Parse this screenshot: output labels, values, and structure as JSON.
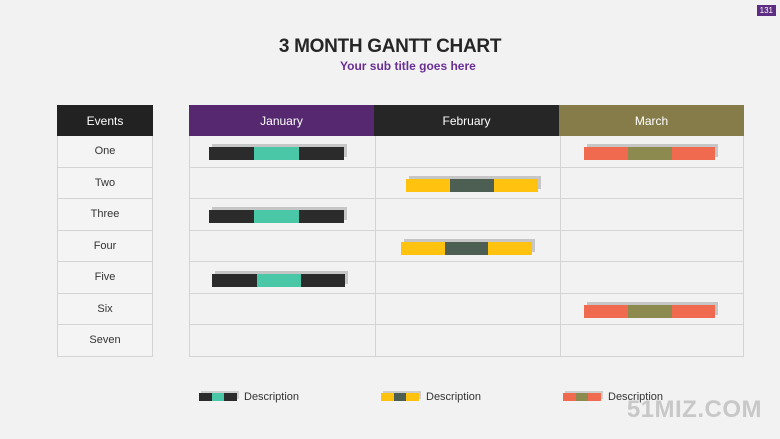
{
  "page_number": "131",
  "title": "3 MONTH GANTT CHART",
  "subtitle": "Your sub title goes here",
  "events_header": "Events",
  "watermark": "51MIZ.COM",
  "colors": {
    "dark": "#2b2b2b",
    "teal": "#4ac7a6",
    "yellow": "#ffc20e",
    "olive_dark": "#4d5e52",
    "coral": "#f06a4f",
    "olive": "#8c8a4e",
    "month_january": "#55286f",
    "month_february": "#262626",
    "month_march": "#857c4a"
  },
  "chart_data": {
    "type": "gantt",
    "title": "3 MONTH GANTT CHART",
    "subtitle": "Your sub title goes here",
    "months": [
      "January",
      "February",
      "March"
    ],
    "events": [
      "One",
      "Two",
      "Three",
      "Four",
      "Five",
      "Six",
      "Seven"
    ],
    "tasks": [
      {
        "event": "One",
        "month": "January",
        "start": 0.1,
        "end": 0.83,
        "style": "dark"
      },
      {
        "event": "Two",
        "month": "February",
        "start": 0.17,
        "end": 0.88,
        "style": "yellow"
      },
      {
        "event": "Three",
        "month": "January",
        "start": 0.1,
        "end": 0.83,
        "style": "dark"
      },
      {
        "event": "Four",
        "month": "February",
        "start": 0.14,
        "end": 0.85,
        "style": "yellow"
      },
      {
        "event": "Five",
        "month": "January",
        "start": 0.12,
        "end": 0.84,
        "style": "dark"
      },
      {
        "event": "Six",
        "month": "March",
        "start": 0.13,
        "end": 0.84,
        "style": "coral"
      },
      {
        "event": "One",
        "month": "March",
        "start": 0.13,
        "end": 0.84,
        "style": "coral"
      }
    ],
    "legend": [
      {
        "style": "dark",
        "label": "Description"
      },
      {
        "style": "yellow",
        "label": "Description"
      },
      {
        "style": "coral",
        "label": "Description"
      }
    ]
  }
}
